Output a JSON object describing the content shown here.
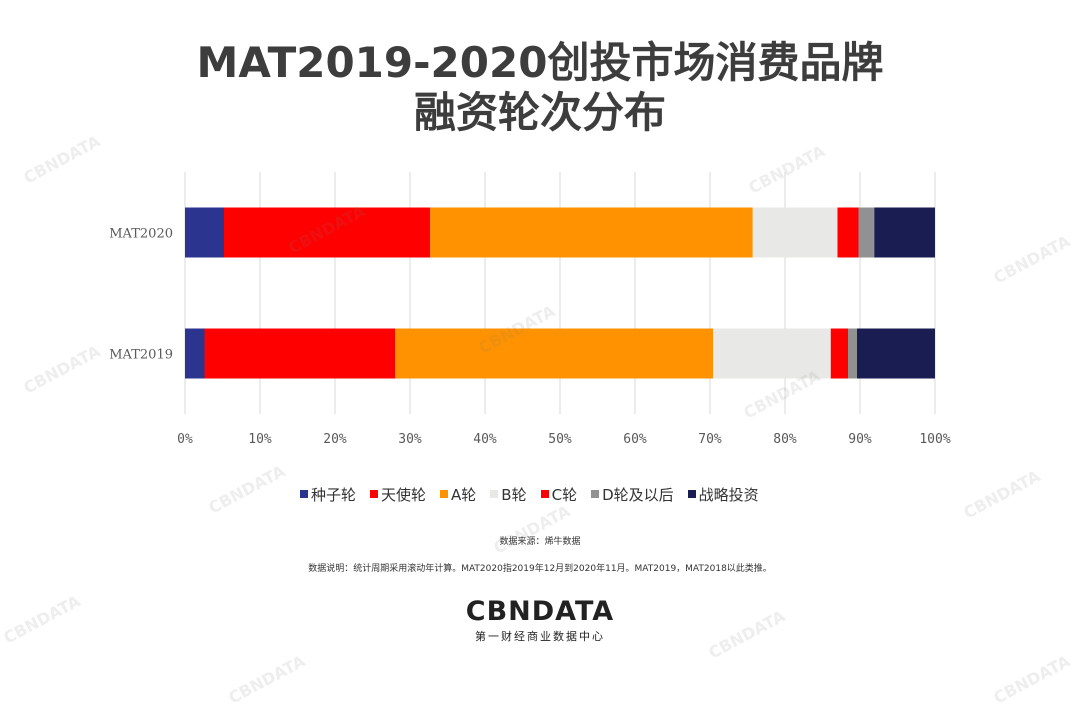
{
  "title_line1": "MAT2019-2020创投市场消费品牌",
  "title_line2": "融资轮次分布",
  "source": "数据来源：烯牛数据",
  "note": "数据说明：统计周期采用滚动年计算。MAT2020指2019年12月到2020年11月。MAT2019，MAT2018以此类推。",
  "logo": {
    "main": "CBNDATA",
    "sub": "第一财经商业数据中心"
  },
  "watermark": "CBNDATA",
  "chart_data": {
    "type": "bar",
    "orientation": "horizontal",
    "stacked": true,
    "categories": [
      "MAT2020",
      "MAT2019"
    ],
    "xlim": [
      0,
      100
    ],
    "x_ticks": [
      "0%",
      "10%",
      "20%",
      "30%",
      "40%",
      "50%",
      "60%",
      "70%",
      "80%",
      "90%",
      "100%"
    ],
    "grid": true,
    "legend_position": "bottom",
    "series": [
      {
        "name": "种子轮",
        "color": "#2B3590",
        "values": [
          5.2,
          2.6
        ]
      },
      {
        "name": "天使轮",
        "color": "#FF0000",
        "values": [
          27.5,
          25.4
        ]
      },
      {
        "name": "A轮",
        "color": "#FF9200",
        "values": [
          43.0,
          42.4
        ]
      },
      {
        "name": "B轮",
        "color": "#E8E8E6",
        "values": [
          11.3,
          15.7
        ]
      },
      {
        "name": "C轮",
        "color": "#FF0000",
        "values": [
          2.8,
          2.3
        ]
      },
      {
        "name": "D轮及以后",
        "color": "#919191",
        "values": [
          2.1,
          1.2
        ]
      },
      {
        "name": "战略投资",
        "color": "#1A1D52",
        "values": [
          8.1,
          10.4
        ]
      }
    ]
  }
}
